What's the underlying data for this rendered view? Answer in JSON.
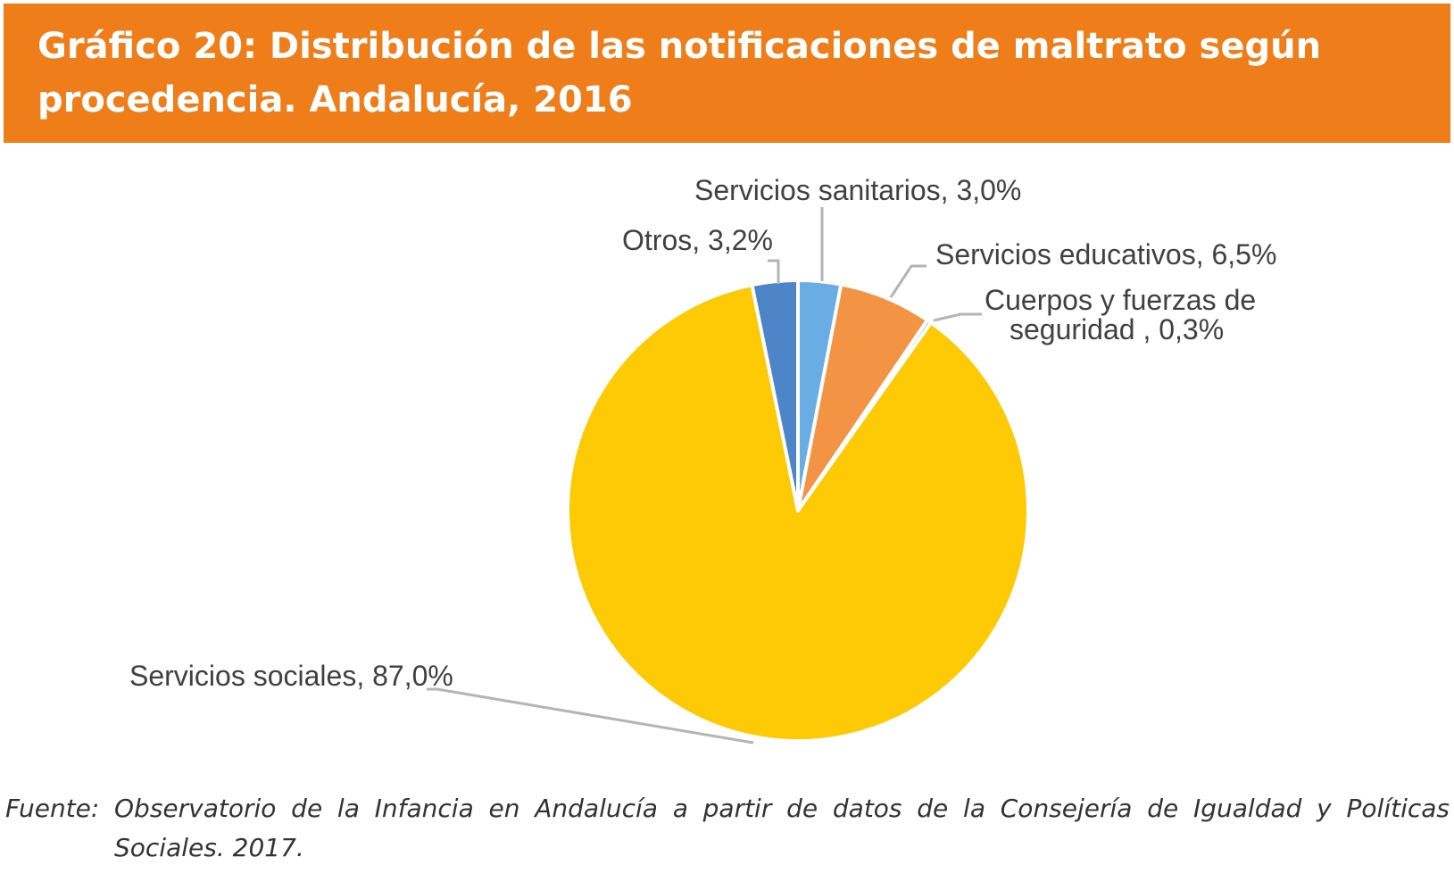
{
  "title": {
    "line1": "Gráfico 20: Distribución de las notificaciones de maltrato según",
    "line2": "procedencia. Andalucía, 2016"
  },
  "source": {
    "prefix": "Fuente:",
    "line1": "Observatorio de la Infancia en Andalucía a partir de datos de la Consejería de Igualdad y Políticas",
    "line2": "Sociales. 2017."
  },
  "colors": {
    "banner": "#ef7d1a",
    "leader": "#b4b4b4"
  },
  "chart_data": {
    "type": "pie",
    "start_angle_deg": 0,
    "direction": "clockwise",
    "slices": [
      {
        "key": "sanitarios",
        "label": "Servicios sanitarios, 3,0%",
        "value": 3.0,
        "color": "#6aade4"
      },
      {
        "key": "educativos",
        "label": "Servicios educativos, 6,5%",
        "value": 6.5,
        "color": "#f39444"
      },
      {
        "key": "cuerpos",
        "label_lines": [
          "Cuerpos y fuerzas de",
          "seguridad , 0,3%"
        ],
        "value": 0.3,
        "color": "#8faadc"
      },
      {
        "key": "sociales",
        "label": "Servicios sociales, 87,0%",
        "value": 87.0,
        "color": "#fdca05"
      },
      {
        "key": "otros",
        "label": "Otros, 3,2%",
        "value": 3.2,
        "color": "#4e85c8"
      }
    ]
  }
}
